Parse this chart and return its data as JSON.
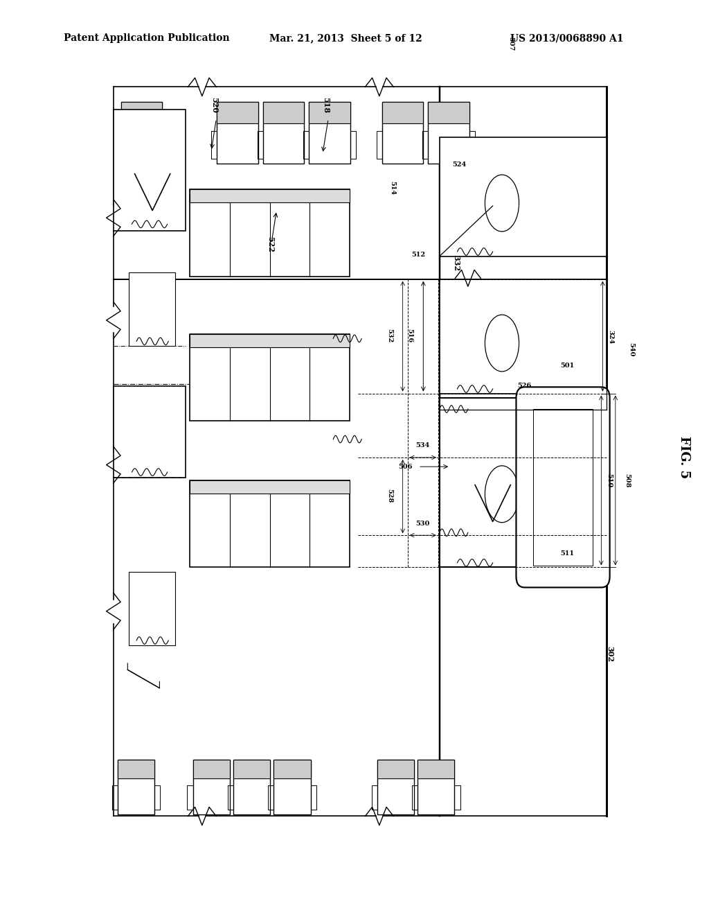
{
  "title_left": "Patent Application Publication",
  "title_mid": "Mar. 21, 2013  Sheet 5 of 12",
  "title_right": "US 2013/0068890 A1",
  "fig_label": "FIG. 5",
  "bg_color": "#ffffff",
  "line_color": "#000000"
}
